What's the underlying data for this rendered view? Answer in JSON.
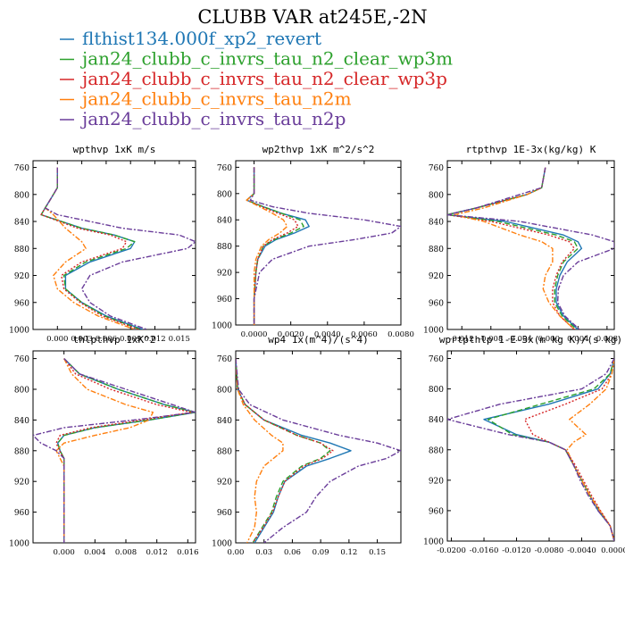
{
  "title": "CLUBB VAR at245E,-2N",
  "legend": [
    {
      "label": "flthist134.000f_xp2_revert",
      "color": "#1f77b4",
      "dash": "solid"
    },
    {
      "label": "jan24_clubb_c_invrs_tau_n2_clear_wp3m",
      "color": "#2ca02c",
      "dash": "dashed"
    },
    {
      "label": "jan24_clubb_c_invrs_tau_n2_clear_wp3p",
      "color": "#d62728",
      "dash": "dotted"
    },
    {
      "label": "jan24_clubb_c_invrs_tau_n2m",
      "color": "#ff7f0e",
      "dash": "dashdot"
    },
    {
      "label": "jan24_clubb_c_invrs_tau_n2p",
      "color": "#6a3d9a",
      "dash": "dashdot"
    }
  ],
  "chart_data": [
    {
      "type": "line",
      "title": "wpthvp  1xK m/s",
      "xlim": [
        -0.003,
        0.017
      ],
      "ylim": [
        1000,
        750
      ],
      "xticks": [
        0.0,
        0.003,
        0.006,
        0.009,
        0.012,
        0.015
      ],
      "xticklabels": [
        "0.000",
        "0.003",
        "0.006",
        "0.009",
        "0.012",
        "0.015"
      ],
      "yticks": [
        760,
        800,
        840,
        880,
        920,
        960,
        1000
      ],
      "y": [
        760,
        790,
        800,
        810,
        820,
        830,
        850,
        860,
        870,
        880,
        900,
        920,
        940,
        960,
        980,
        1000
      ],
      "series": [
        {
          "name": "flthist134.000f_xp2_revert",
          "x": [
            0.0,
            0.0,
            -0.0005,
            -0.001,
            -0.0015,
            -0.002,
            0.003,
            0.007,
            0.0095,
            0.009,
            0.004,
            0.001,
            0.001,
            0.003,
            0.006,
            0.0105
          ]
        },
        {
          "name": "jan24_clubb_c_invrs_tau_n2_clear_wp3m",
          "x": [
            0.0,
            0.0,
            -0.0005,
            -0.001,
            -0.0015,
            -0.002,
            0.003,
            0.007,
            0.0095,
            0.0085,
            0.0035,
            0.0008,
            0.001,
            0.003,
            0.0058,
            0.0102
          ]
        },
        {
          "name": "jan24_clubb_c_invrs_tau_n2_clear_wp3p",
          "x": [
            0.0,
            0.0,
            -0.0005,
            -0.001,
            -0.0015,
            -0.002,
            0.0025,
            0.0065,
            0.0085,
            0.008,
            0.003,
            0.0005,
            0.0008,
            0.0028,
            0.0055,
            0.01
          ]
        },
        {
          "name": "jan24_clubb_c_invrs_tau_n2m",
          "x": [
            0.0,
            0.0,
            -0.0005,
            -0.001,
            -0.0015,
            -0.0005,
            0.001,
            0.002,
            0.003,
            0.0035,
            0.001,
            -0.0005,
            0.0,
            0.002,
            0.005,
            0.0095
          ]
        },
        {
          "name": "jan24_clubb_c_invrs_tau_n2p",
          "x": [
            0.0,
            0.0,
            -0.0005,
            -0.001,
            -0.0015,
            0.0,
            0.008,
            0.015,
            0.017,
            0.016,
            0.008,
            0.004,
            0.003,
            0.004,
            0.0065,
            0.011
          ]
        }
      ]
    },
    {
      "type": "line",
      "title": "wp2thvp  1xK m^2/s^2",
      "xlim": [
        -0.001,
        0.008
      ],
      "ylim": [
        1000,
        750
      ],
      "xticks": [
        0.0,
        0.002,
        0.004,
        0.006,
        0.008
      ],
      "xticklabels": [
        "0.0000",
        "0.0020",
        "0.0040",
        "0.0060",
        "0.0080"
      ],
      "yticks": [
        760,
        800,
        840,
        880,
        920,
        960,
        1000
      ],
      "y": [
        760,
        800,
        810,
        820,
        830,
        840,
        850,
        860,
        870,
        880,
        900,
        920,
        960,
        1000
      ],
      "series": [
        {
          "name": "flthist134.000f_xp2_revert",
          "x": [
            0.0,
            0.0,
            -0.0004,
            0.0005,
            0.0015,
            0.0028,
            0.003,
            0.0022,
            0.0012,
            0.0006,
            0.0002,
            0.0001,
            0.0,
            0.0
          ]
        },
        {
          "name": "jan24_clubb_c_invrs_tau_n2_clear_wp3m",
          "x": [
            0.0,
            0.0,
            -0.0004,
            0.0005,
            0.0015,
            0.0025,
            0.0027,
            0.002,
            0.0011,
            0.0005,
            0.0002,
            0.0001,
            0.0,
            0.0
          ]
        },
        {
          "name": "jan24_clubb_c_invrs_tau_n2_clear_wp3p",
          "x": [
            0.0,
            0.0,
            -0.0004,
            0.0004,
            0.0013,
            0.0022,
            0.0024,
            0.0018,
            0.001,
            0.0005,
            0.0002,
            0.0001,
            0.0,
            0.0
          ]
        },
        {
          "name": "jan24_clubb_c_invrs_tau_n2m",
          "x": [
            0.0,
            0.0,
            -0.0004,
            0.0003,
            0.001,
            0.0016,
            0.0018,
            0.0014,
            0.0008,
            0.0004,
            0.0001,
            0.0,
            0.0,
            0.0
          ]
        },
        {
          "name": "jan24_clubb_c_invrs_tau_n2p",
          "x": [
            0.0,
            0.0,
            -0.0002,
            0.001,
            0.003,
            0.006,
            0.008,
            0.0075,
            0.0055,
            0.003,
            0.001,
            0.0003,
            0.0,
            0.0
          ]
        }
      ]
    },
    {
      "type": "line",
      "title": "rtpthvp  1E-3x(kg/kg) K",
      "xlim": [
        -0.014,
        0.009
      ],
      "ylim": [
        1000,
        750
      ],
      "xticks": [
        -0.012,
        -0.008,
        -0.004,
        0.0,
        0.004,
        0.008
      ],
      "xticklabels": [
        "-0.012",
        "-0.008",
        "-0.004",
        "0.000",
        "0.004",
        "0.008"
      ],
      "yticks": [
        760,
        800,
        840,
        880,
        920,
        960,
        1000
      ],
      "y": [
        760,
        790,
        800,
        820,
        830,
        840,
        860,
        870,
        880,
        900,
        920,
        940,
        960,
        980,
        1000
      ],
      "series": [
        {
          "name": "flthist134.000f_xp2_revert",
          "x": [
            -0.0005,
            -0.001,
            -0.003,
            -0.01,
            -0.014,
            -0.006,
            0.002,
            0.004,
            0.0045,
            0.0025,
            0.0015,
            0.001,
            0.001,
            0.002,
            0.004
          ]
        },
        {
          "name": "jan24_clubb_c_invrs_tau_n2_clear_wp3m",
          "x": [
            -0.0005,
            -0.001,
            -0.003,
            -0.01,
            -0.014,
            -0.007,
            0.001,
            0.0035,
            0.004,
            0.002,
            0.0012,
            0.0008,
            0.0008,
            0.0018,
            0.0038
          ]
        },
        {
          "name": "jan24_clubb_c_invrs_tau_n2_clear_wp3p",
          "x": [
            -0.0005,
            -0.001,
            -0.003,
            -0.01,
            -0.014,
            -0.008,
            0.0,
            0.0028,
            0.0035,
            0.0018,
            0.001,
            0.0005,
            0.0005,
            0.0015,
            0.0035
          ]
        },
        {
          "name": "jan24_clubb_c_invrs_tau_n2m",
          "x": [
            -0.0005,
            -0.001,
            -0.003,
            -0.009,
            -0.013,
            -0.009,
            -0.004,
            -0.001,
            0.0005,
            0.0005,
            -0.0005,
            -0.0008,
            0.0,
            0.0015,
            0.0035
          ]
        },
        {
          "name": "jan24_clubb_c_invrs_tau_n2p",
          "x": [
            -0.0005,
            -0.001,
            -0.004,
            -0.01,
            -0.014,
            -0.004,
            0.006,
            0.009,
            0.009,
            0.004,
            0.002,
            0.0013,
            0.0012,
            0.0022,
            0.0042
          ]
        }
      ]
    },
    {
      "type": "line",
      "title": "thlpthvp  1xK^2",
      "xlim": [
        -0.004,
        0.017
      ],
      "ylim": [
        1000,
        750
      ],
      "xticks": [
        0.0,
        0.004,
        0.008,
        0.012,
        0.016
      ],
      "xticklabels": [
        "0.000",
        "0.004",
        "0.008",
        "0.012",
        "0.016"
      ],
      "yticks": [
        760,
        800,
        840,
        880,
        920,
        960,
        1000
      ],
      "y": [
        760,
        780,
        800,
        820,
        830,
        840,
        850,
        860,
        870,
        880,
        890,
        900,
        920,
        960,
        1000
      ],
      "series": [
        {
          "name": "flthist134.000f_xp2_revert",
          "x": [
            0.0,
            0.002,
            0.007,
            0.013,
            0.017,
            0.011,
            0.004,
            0.0,
            -0.0008,
            -0.0005,
            0.0,
            0.0,
            0.0,
            0.0,
            0.0
          ]
        },
        {
          "name": "jan24_clubb_c_invrs_tau_n2_clear_wp3m",
          "x": [
            0.0,
            0.002,
            0.007,
            0.013,
            0.017,
            0.011,
            0.004,
            0.0,
            -0.0008,
            -0.0005,
            0.0,
            0.0,
            0.0,
            0.0,
            0.0
          ]
        },
        {
          "name": "jan24_clubb_c_invrs_tau_n2_clear_wp3p",
          "x": [
            0.0,
            0.0015,
            0.006,
            0.012,
            0.0165,
            0.01,
            0.0035,
            -0.0005,
            -0.001,
            -0.0006,
            0.0,
            0.0,
            0.0,
            0.0,
            0.0
          ]
        },
        {
          "name": "jan24_clubb_c_invrs_tau_n2m",
          "x": [
            0.0,
            0.001,
            0.003,
            0.008,
            0.0115,
            0.011,
            0.0085,
            0.004,
            0.0,
            -0.001,
            -0.0005,
            0.0,
            0.0,
            0.0,
            0.0
          ]
        },
        {
          "name": "jan24_clubb_c_invrs_tau_n2p",
          "x": [
            0.0,
            0.002,
            0.008,
            0.014,
            0.017,
            0.009,
            0.0,
            -0.004,
            -0.003,
            -0.001,
            0.0,
            0.0,
            0.0,
            0.0,
            0.0
          ]
        }
      ]
    },
    {
      "type": "line",
      "title": "wp4  1x(m^4)/(s^4)",
      "xlim": [
        0.0,
        0.175
      ],
      "ylim": [
        1000,
        750
      ],
      "xticks": [
        0.0,
        0.03,
        0.06,
        0.09,
        0.12,
        0.15
      ],
      "xticklabels": [
        "0.00",
        "0.03",
        "0.06",
        "0.09",
        "0.12",
        "0.15"
      ],
      "yticks": [
        760,
        800,
        840,
        880,
        920,
        960,
        1000
      ],
      "y": [
        760,
        800,
        820,
        840,
        860,
        870,
        880,
        890,
        900,
        920,
        940,
        960,
        980,
        1000
      ],
      "series": [
        {
          "name": "flthist134.000f_xp2_revert",
          "x": [
            0.0,
            0.002,
            0.01,
            0.03,
            0.07,
            0.1,
            0.122,
            0.1,
            0.075,
            0.052,
            0.045,
            0.04,
            0.03,
            0.02
          ]
        },
        {
          "name": "jan24_clubb_c_invrs_tau_n2_clear_wp3m",
          "x": [
            0.0,
            0.002,
            0.01,
            0.03,
            0.065,
            0.09,
            0.1,
            0.09,
            0.07,
            0.05,
            0.043,
            0.038,
            0.028,
            0.018
          ]
        },
        {
          "name": "jan24_clubb_c_invrs_tau_n2_clear_wp3p",
          "x": [
            0.0,
            0.002,
            0.01,
            0.03,
            0.065,
            0.09,
            0.103,
            0.092,
            0.072,
            0.052,
            0.045,
            0.039,
            0.029,
            0.018
          ]
        },
        {
          "name": "jan24_clubb_c_invrs_tau_n2m",
          "x": [
            0.0,
            0.002,
            0.008,
            0.02,
            0.038,
            0.05,
            0.05,
            0.04,
            0.03,
            0.022,
            0.02,
            0.022,
            0.02,
            0.012
          ]
        },
        {
          "name": "jan24_clubb_c_invrs_tau_n2p",
          "x": [
            0.0,
            0.003,
            0.015,
            0.05,
            0.11,
            0.15,
            0.175,
            0.16,
            0.13,
            0.1,
            0.085,
            0.075,
            0.05,
            0.03
          ]
        }
      ]
    },
    {
      "type": "line",
      "title": "wprtpthlp  1-E-3x(m kg K)/(s kg)",
      "xlim": [
        -0.0205,
        0.0
      ],
      "ylim": [
        1000,
        750
      ],
      "xticks": [
        -0.02,
        -0.016,
        -0.012,
        -0.008,
        -0.004,
        0.0
      ],
      "xticklabels": [
        "-0.0200",
        "-0.0160",
        "-0.0120",
        "-0.0080",
        "-0.0040",
        "0.0000"
      ],
      "yticks": [
        760,
        800,
        840,
        880,
        920,
        960,
        1000
      ],
      "y": [
        760,
        780,
        800,
        820,
        840,
        860,
        870,
        880,
        900,
        920,
        940,
        960,
        980,
        1000
      ],
      "series": [
        {
          "name": "flthist134.000f_xp2_revert",
          "x": [
            0.0,
            -0.0005,
            -0.002,
            -0.008,
            -0.016,
            -0.012,
            -0.008,
            -0.006,
            -0.005,
            -0.004,
            -0.003,
            -0.002,
            -0.0005,
            0.0
          ]
        },
        {
          "name": "jan24_clubb_c_invrs_tau_n2_clear_wp3m",
          "x": [
            0.0,
            -0.0005,
            -0.0025,
            -0.009,
            -0.0155,
            -0.0125,
            -0.008,
            -0.006,
            -0.005,
            -0.004,
            -0.003,
            -0.0018,
            -0.0005,
            0.0
          ]
        },
        {
          "name": "jan24_clubb_c_invrs_tau_n2_clear_wp3p",
          "x": [
            0.0,
            -0.0003,
            -0.0015,
            -0.006,
            -0.011,
            -0.01,
            -0.008,
            -0.006,
            -0.0048,
            -0.0038,
            -0.0028,
            -0.0017,
            -0.0005,
            0.0
          ]
        },
        {
          "name": "jan24_clubb_c_invrs_tau_n2m",
          "x": [
            0.0,
            -0.0003,
            -0.001,
            -0.003,
            -0.0055,
            -0.0035,
            -0.005,
            -0.0058,
            -0.005,
            -0.004,
            -0.003,
            -0.0018,
            -0.0005,
            0.0
          ]
        },
        {
          "name": "jan24_clubb_c_invrs_tau_n2p",
          "x": [
            0.0,
            -0.001,
            -0.004,
            -0.014,
            -0.0205,
            -0.013,
            -0.008,
            -0.006,
            -0.005,
            -0.0042,
            -0.0032,
            -0.002,
            -0.0005,
            0.0
          ]
        }
      ]
    }
  ]
}
